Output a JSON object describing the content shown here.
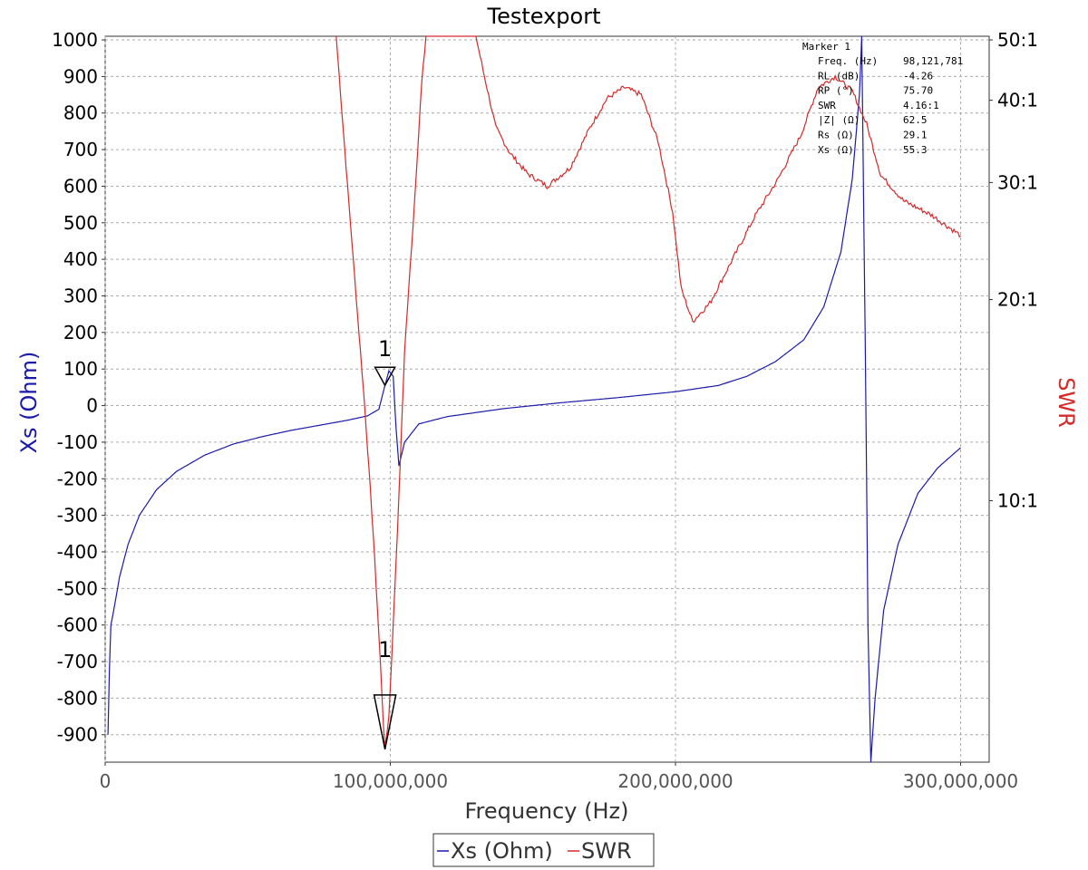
{
  "chart_data": {
    "type": "line",
    "title": "Testexport",
    "xlabel": "Frequency (Hz)",
    "ylabel_left": "Xs (Ohm)",
    "ylabel_right": "SWR",
    "xlim": [
      0,
      310000000
    ],
    "ylim_left": [
      -975,
      1010
    ],
    "right_axis": {
      "ticks": [
        {
          "label": "50:1",
          "left_value": 1000
        },
        {
          "label": "40:1",
          "left_value": 835
        },
        {
          "label": "30:1",
          "left_value": 610
        },
        {
          "label": "20:1",
          "left_value": 290
        },
        {
          "label": "10:1",
          "left_value": -260
        }
      ]
    },
    "x_ticks": [
      {
        "value": 0,
        "label": "0"
      },
      {
        "value": 100000000,
        "label": "100,000,000"
      },
      {
        "value": 200000000,
        "label": "200,000,000"
      },
      {
        "value": 300000000,
        "label": "300,000,000"
      }
    ],
    "y_ticks_left": [
      1000,
      900,
      800,
      700,
      600,
      500,
      400,
      300,
      200,
      100,
      0,
      -100,
      -200,
      -300,
      -400,
      -500,
      -600,
      -700,
      -800,
      -900
    ],
    "grid": true,
    "legend_position": "bottom-center",
    "series": [
      {
        "name": "Xs (Ohm)",
        "color": "#1a1aaa",
        "axis": "left",
        "points": [
          [
            1000000,
            -900
          ],
          [
            1500000,
            -720
          ],
          [
            2000000,
            -600
          ],
          [
            3000000,
            -560
          ],
          [
            5000000,
            -470
          ],
          [
            8000000,
            -380
          ],
          [
            12000000,
            -300
          ],
          [
            18000000,
            -230
          ],
          [
            25000000,
            -180
          ],
          [
            35000000,
            -135
          ],
          [
            45000000,
            -105
          ],
          [
            55000000,
            -85
          ],
          [
            65000000,
            -68
          ],
          [
            75000000,
            -54
          ],
          [
            85000000,
            -40
          ],
          [
            92000000,
            -28
          ],
          [
            96000000,
            -10
          ],
          [
            98100000,
            55
          ],
          [
            99500000,
            95
          ],
          [
            101000000,
            80
          ],
          [
            102000000,
            -60
          ],
          [
            103000000,
            -165
          ],
          [
            105000000,
            -100
          ],
          [
            110000000,
            -50
          ],
          [
            120000000,
            -30
          ],
          [
            140000000,
            -8
          ],
          [
            160000000,
            8
          ],
          [
            180000000,
            22
          ],
          [
            200000000,
            38
          ],
          [
            215000000,
            55
          ],
          [
            225000000,
            80
          ],
          [
            235000000,
            120
          ],
          [
            245000000,
            180
          ],
          [
            252000000,
            270
          ],
          [
            258000000,
            420
          ],
          [
            262000000,
            620
          ],
          [
            264500000,
            850
          ],
          [
            265300000,
            1010
          ],
          [
            266500000,
            200
          ],
          [
            267500000,
            -600
          ],
          [
            268500000,
            -975
          ],
          [
            270000000,
            -800
          ],
          [
            273000000,
            -560
          ],
          [
            278000000,
            -380
          ],
          [
            285000000,
            -240
          ],
          [
            292000000,
            -170
          ],
          [
            300000000,
            -115
          ]
        ]
      },
      {
        "name": "SWR",
        "color": "#d42a2a",
        "axis": "right",
        "points": [
          [
            81000000,
            1010
          ],
          [
            82000000,
            910
          ],
          [
            85000000,
            600
          ],
          [
            88000000,
            300
          ],
          [
            91000000,
            0
          ],
          [
            94000000,
            -350
          ],
          [
            96500000,
            -700
          ],
          [
            98000000,
            -940
          ],
          [
            99500000,
            -850
          ],
          [
            101000000,
            -600
          ],
          [
            103000000,
            -250
          ],
          [
            105000000,
            150
          ],
          [
            108000000,
            500
          ],
          [
            111000000,
            880
          ],
          [
            112500000,
            1010
          ],
          [
            130000000,
            1010
          ],
          [
            133000000,
            900
          ],
          [
            137000000,
            760
          ],
          [
            142000000,
            690
          ],
          [
            148000000,
            635
          ],
          [
            155000000,
            600
          ],
          [
            163000000,
            650
          ],
          [
            170000000,
            760
          ],
          [
            176000000,
            840
          ],
          [
            182000000,
            870
          ],
          [
            188000000,
            850
          ],
          [
            194000000,
            720
          ],
          [
            199000000,
            530
          ],
          [
            202000000,
            320
          ],
          [
            206000000,
            230
          ],
          [
            212000000,
            280
          ],
          [
            220000000,
            400
          ],
          [
            228000000,
            520
          ],
          [
            236000000,
            620
          ],
          [
            244000000,
            740
          ],
          [
            250000000,
            870
          ],
          [
            256000000,
            900
          ],
          [
            262000000,
            860
          ],
          [
            267000000,
            770
          ],
          [
            272000000,
            630
          ],
          [
            280000000,
            560
          ],
          [
            290000000,
            520
          ],
          [
            300000000,
            465
          ]
        ]
      }
    ],
    "markers": [
      {
        "label": "1",
        "series": "Xs (Ohm)",
        "x": 98121781,
        "y": 55.3
      },
      {
        "label": "1",
        "series": "SWR",
        "x": 98121781,
        "y": -940
      }
    ],
    "marker_info": {
      "title": "Marker 1",
      "rows": [
        {
          "label": "Freq. (Hz)",
          "value": "98,121,781"
        },
        {
          "label": "RL (dB)",
          "value": "-4.26"
        },
        {
          "label": "RP (°)",
          "value": "75.70"
        },
        {
          "label": "SWR",
          "value": "4.16:1"
        },
        {
          "label": "|Z| (Ω)",
          "value": "62.5"
        },
        {
          "label": "Rs (Ω)",
          "value": "29.1"
        },
        {
          "label": "Xs (Ω)",
          "value": "55.3"
        }
      ]
    }
  },
  "colors": {
    "left_axis": "#1a1aaa",
    "right_axis": "#d42a2a",
    "grid": "#aaaaaa"
  }
}
